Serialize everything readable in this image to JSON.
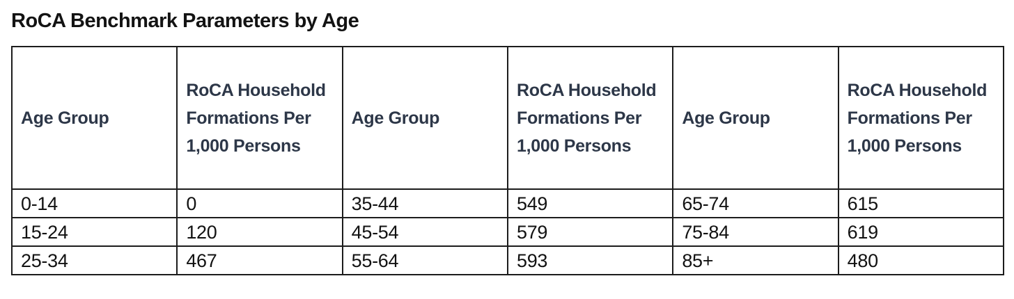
{
  "page": {
    "title": "RoCA Benchmark Parameters by Age"
  },
  "table": {
    "headers": [
      "Age Group",
      "RoCA Household Formations Per 1,000 Persons",
      "Age Group",
      "RoCA Household Formations Per 1,000 Persons",
      "Age Group",
      "RoCA Household Formations Per 1,000 Persons"
    ],
    "rows": [
      [
        "0-14",
        "0",
        "35-44",
        "549",
        "65-74",
        "615"
      ],
      [
        "15-24",
        "120",
        "45-54",
        "579",
        "75-84",
        "619"
      ],
      [
        "25-34",
        "467",
        "55-64",
        "593",
        "85+",
        "480"
      ]
    ]
  },
  "colors": {
    "header_text": "#2d3748",
    "body_text": "#121212",
    "title_text": "#131313",
    "border": "#1c1c1c",
    "background": "#ffffff"
  }
}
